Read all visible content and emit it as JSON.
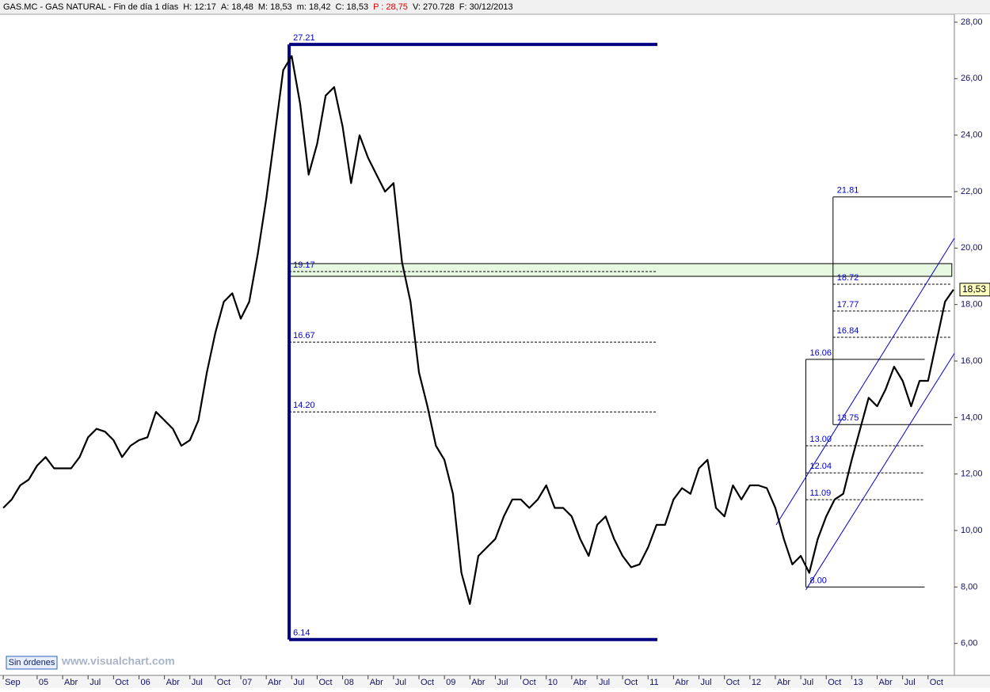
{
  "chart_data": {
    "type": "line",
    "title": "GAS.MC - GAS NATURAL - Fin de día 1 días",
    "info": [
      {
        "text": "H: 12:17",
        "color": "#000000"
      },
      {
        "text": "A: 18,48",
        "color": "#000000"
      },
      {
        "text": "M: 18,53",
        "color": "#000000"
      },
      {
        "text": "m: 18,42",
        "color": "#000000"
      },
      {
        "text": "C: 18,53",
        "color": "#000000"
      },
      {
        "text": "P : 28,75",
        "color": "#e00000"
      },
      {
        "text": "V: 270.728",
        "color": "#000000"
      },
      {
        "text": "F: 30/12/2013",
        "color": "#000000"
      }
    ],
    "color": "#000000",
    "x": [
      1,
      2,
      3,
      4,
      5,
      6,
      7,
      8,
      9,
      10,
      11,
      12,
      13,
      14,
      15,
      16,
      17,
      18,
      19,
      20,
      21,
      22,
      23,
      24,
      25,
      26,
      27,
      28,
      29,
      30,
      31,
      32,
      33,
      34,
      35,
      36,
      37,
      38,
      39,
      40,
      41,
      42,
      43,
      44,
      45,
      46,
      47,
      48,
      49,
      50,
      51,
      52,
      53,
      54,
      55,
      56,
      57,
      58,
      59,
      60,
      61,
      62,
      63,
      64,
      65,
      66,
      67,
      68,
      69,
      70,
      71,
      72,
      73,
      74,
      75,
      76,
      77,
      78,
      79,
      80,
      81,
      82,
      83,
      84,
      85,
      86,
      87,
      88,
      89,
      90,
      91,
      92,
      93,
      94,
      95,
      96,
      97,
      98,
      99,
      100,
      101,
      102,
      103,
      104,
      105,
      106,
      107,
      108,
      109,
      110,
      111,
      112,
      113
    ],
    "values": [
      10.8,
      11.1,
      11.6,
      11.8,
      12.3,
      12.6,
      12.2,
      12.2,
      12.2,
      12.6,
      13.3,
      13.6,
      13.5,
      13.2,
      12.6,
      13.0,
      13.2,
      13.3,
      14.2,
      13.9,
      13.6,
      13.0,
      13.2,
      13.9,
      15.6,
      17.0,
      18.1,
      18.4,
      17.5,
      18.1,
      19.8,
      21.75,
      24.0,
      26.3,
      26.8,
      25.1,
      22.6,
      23.7,
      25.4,
      25.7,
      24.3,
      22.3,
      24.0,
      23.2,
      22.6,
      22.0,
      22.3,
      19.5,
      18.1,
      15.6,
      14.4,
      13.0,
      12.5,
      11.3,
      8.5,
      7.4,
      9.1,
      9.4,
      9.7,
      10.5,
      11.1,
      11.1,
      10.8,
      11.1,
      11.6,
      10.8,
      10.8,
      10.5,
      9.7,
      9.1,
      10.2,
      10.5,
      9.7,
      9.1,
      8.7,
      8.8,
      9.4,
      10.2,
      10.2,
      11.1,
      11.5,
      11.3,
      12.2,
      12.5,
      10.8,
      10.5,
      11.6,
      11.1,
      11.6,
      11.6,
      11.5,
      10.8,
      9.7,
      8.8,
      9.1,
      8.5,
      9.7,
      10.5,
      11.1,
      11.3,
      12.5,
      13.6,
      14.7,
      14.4,
      15.0,
      15.8,
      15.3,
      14.4,
      15.3,
      15.3,
      16.7,
      18.1,
      18.53
    ],
    "last_price": {
      "value": 18.53,
      "label": "18,53"
    },
    "xlim": [
      0.62,
      113.1
    ],
    "ylim": [
      4.87,
      28.28
    ],
    "yticks": [
      {
        "value": 6,
        "label": "6,00"
      },
      {
        "value": 8,
        "label": "8,00"
      },
      {
        "value": 10,
        "label": "10,00"
      },
      {
        "value": 12,
        "label": "12,00"
      },
      {
        "value": 14,
        "label": "14,00"
      },
      {
        "value": 16,
        "label": "16,00"
      },
      {
        "value": 18,
        "label": "18,00"
      },
      {
        "value": 20,
        "label": "20,00"
      },
      {
        "value": 22,
        "label": "22,00"
      },
      {
        "value": 24,
        "label": "24,00"
      },
      {
        "value": 26,
        "label": "26,00"
      },
      {
        "value": 28,
        "label": "28,00"
      }
    ],
    "xticks": [
      {
        "value": 1,
        "label": "Sep"
      },
      {
        "value": 5,
        "label": "05"
      },
      {
        "value": 8,
        "label": "Abr"
      },
      {
        "value": 11,
        "label": "Jul"
      },
      {
        "value": 14,
        "label": "Oct"
      },
      {
        "value": 17,
        "label": "06"
      },
      {
        "value": 20,
        "label": "Abr"
      },
      {
        "value": 23,
        "label": "Jul"
      },
      {
        "value": 26,
        "label": "Oct"
      },
      {
        "value": 29,
        "label": "07"
      },
      {
        "value": 32,
        "label": "Abr"
      },
      {
        "value": 35,
        "label": "Jul"
      },
      {
        "value": 38,
        "label": "Oct"
      },
      {
        "value": 41,
        "label": "08"
      },
      {
        "value": 44,
        "label": "Abr"
      },
      {
        "value": 47,
        "label": "Jul"
      },
      {
        "value": 50,
        "label": "Oct"
      },
      {
        "value": 53,
        "label": "09"
      },
      {
        "value": 56,
        "label": "Abr"
      },
      {
        "value": 59,
        "label": "Jul"
      },
      {
        "value": 62,
        "label": "Oct"
      },
      {
        "value": 65,
        "label": "10"
      },
      {
        "value": 68,
        "label": "Abr"
      },
      {
        "value": 71,
        "label": "Jul"
      },
      {
        "value": 74,
        "label": "Oct"
      },
      {
        "value": 77,
        "label": "11"
      },
      {
        "value": 80,
        "label": "Abr"
      },
      {
        "value": 83,
        "label": "Jul"
      },
      {
        "value": 86,
        "label": "Oct"
      },
      {
        "value": 89,
        "label": "12"
      },
      {
        "value": 92,
        "label": "Abr"
      },
      {
        "value": 95,
        "label": "Jul"
      },
      {
        "value": 98,
        "label": "Oct"
      },
      {
        "value": 101,
        "label": "13"
      },
      {
        "value": 104,
        "label": "Abr"
      },
      {
        "value": 107,
        "label": "Jul"
      },
      {
        "value": 110,
        "label": "Oct"
      }
    ],
    "zone": {
      "ylim": [
        19.0,
        19.45
      ],
      "xlim": [
        34.7,
        112.8
      ],
      "color": "#e6f8e0"
    },
    "channel": [
      {
        "x": [
          92.1,
          113.1
        ],
        "y": [
          10.2,
          20.35
        ],
        "color": "#0000cc"
      },
      {
        "x": [
          95.6,
          113.1
        ],
        "y": [
          7.9,
          16.27
        ],
        "color": "#0000cc"
      }
    ],
    "fibonacci": [
      {
        "xlim": [
          34.7,
          78.1
        ],
        "style": "bold",
        "levels": [
          {
            "value": 27.21,
            "label": "27.21"
          },
          {
            "value": 19.17,
            "label": "19.17"
          },
          {
            "value": 16.67,
            "label": "16.67"
          },
          {
            "value": 14.2,
            "label": "14.20"
          },
          {
            "value": 6.14,
            "label": "6.14"
          }
        ]
      },
      {
        "xlim": [
          98.8,
          112.8
        ],
        "style": "thin",
        "levels": [
          {
            "value": 21.81,
            "label": "21.81"
          },
          {
            "value": 18.72,
            "label": "18.72"
          },
          {
            "value": 17.77,
            "label": "17.77"
          },
          {
            "value": 16.84,
            "label": "16.84"
          },
          {
            "value": 13.75,
            "label": "13.75"
          }
        ]
      },
      {
        "xlim": [
          95.6,
          109.6
        ],
        "style": "thin",
        "levels": [
          {
            "value": 16.06,
            "label": "16.06"
          },
          {
            "value": 13,
            "label": "13.00"
          },
          {
            "value": 12.04,
            "label": "12.04"
          },
          {
            "value": 11.09,
            "label": "11.09"
          },
          {
            "value": 8,
            "label": "8.00"
          }
        ]
      }
    ]
  },
  "ui": {
    "button": "Sin órdenes",
    "watermark": "www.visualchart.com"
  }
}
